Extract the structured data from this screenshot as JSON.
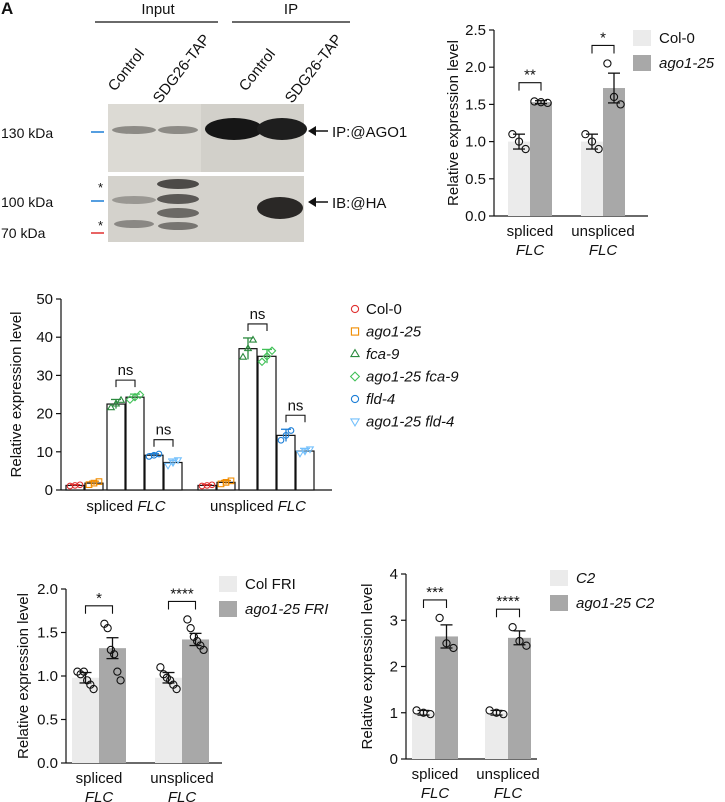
{
  "panel_letter": "A",
  "blot": {
    "group_input": "Input",
    "group_ip": "IP",
    "lanes": [
      "Control",
      "SDG26-TAP",
      "Control",
      "SDG26-TAP"
    ],
    "markers": [
      "130 kDa",
      "100 kDa",
      "70 kDa"
    ],
    "asterisk": "*",
    "label_ago1": "IP:@AGO1",
    "label_ha": "IB:@HA"
  },
  "colors": {
    "col0": "#ebebeb",
    "ago": "#a8a8a8",
    "c_col0": "#e03131",
    "c_ago": "#f08c00",
    "c_fca": "#2b8a3e",
    "c_agofca": "#40c057",
    "c_fld": "#1c7ed6",
    "c_agofld": "#74c0fc"
  },
  "chart_data": [
    {
      "id": "B",
      "type": "bar",
      "ylabel": "Relative expression level",
      "ylim": [
        0,
        2.5
      ],
      "yticks": [
        "0.0",
        "0.5",
        "1.0",
        "1.5",
        "2.0",
        "2.5"
      ],
      "categories": [
        "spliced",
        "unspliced"
      ],
      "categories_line2": [
        "FLC",
        "FLC"
      ],
      "series": [
        {
          "name": "Col-0",
          "values": [
            1.0,
            1.0
          ],
          "err": [
            0.1,
            0.1
          ],
          "points": [
            [
              1.1,
              1.0,
              0.9
            ],
            [
              1.1,
              1.0,
              0.9
            ]
          ]
        },
        {
          "name": "ago1-25",
          "values": [
            1.53,
            1.72
          ],
          "err": [
            0.02,
            0.2
          ],
          "points": [
            [
              1.54,
              1.53,
              1.52
            ],
            [
              2.05,
              1.6,
              1.5
            ]
          ]
        }
      ],
      "significance": [
        "**",
        "*"
      ]
    },
    {
      "id": "C",
      "type": "bar",
      "ylabel": "Relative expression level",
      "ylim": [
        0,
        50
      ],
      "yticks": [
        "0",
        "10",
        "20",
        "30",
        "40",
        "50"
      ],
      "categories": [
        "spliced FLC",
        "unspliced FLC"
      ],
      "series": [
        {
          "name": "Col-0",
          "values": [
            1.2,
            1.2
          ],
          "err": [
            0.2,
            0.2
          ]
        },
        {
          "name": "ago1-25",
          "values": [
            1.8,
            2.0
          ],
          "err": [
            0.5,
            0.5
          ]
        },
        {
          "name": "fca-9",
          "values": [
            22.5,
            37.0
          ],
          "err": [
            1.2,
            2.8
          ]
        },
        {
          "name": "ago1-25 fca-9",
          "values": [
            24.3,
            35.0
          ],
          "err": [
            0.8,
            1.8
          ]
        },
        {
          "name": "fld-4",
          "values": [
            9.1,
            14.3
          ],
          "err": [
            0.4,
            1.6
          ]
        },
        {
          "name": "ago1-25 fld-4",
          "values": [
            7.2,
            10.2
          ],
          "err": [
            0.9,
            0.7
          ]
        }
      ],
      "significance": [
        "ns",
        "ns",
        "ns",
        "ns"
      ]
    },
    {
      "id": "D",
      "type": "bar",
      "ylabel": "Relative expression level",
      "ylim": [
        0,
        2.0
      ],
      "yticks": [
        "0.0",
        "0.5",
        "1.0",
        "1.5",
        "2.0"
      ],
      "categories": [
        "spliced",
        "unspliced"
      ],
      "categories_line2": [
        "FLC",
        "FLC"
      ],
      "series": [
        {
          "name": "Col FRI",
          "values": [
            0.98,
            0.98
          ],
          "err": [
            0.06,
            0.06
          ],
          "points": [
            [
              1.05,
              1.02,
              1.05,
              0.95,
              0.9,
              0.85
            ],
            [
              1.1,
              1.02,
              0.98,
              0.95,
              0.9,
              0.85
            ]
          ]
        },
        {
          "name": "ago1-25 FRI",
          "values": [
            1.32,
            1.42
          ],
          "err": [
            0.12,
            0.07
          ],
          "points": [
            [
              1.6,
              1.55,
              1.3,
              1.25,
              1.05,
              0.95
            ],
            [
              1.65,
              1.55,
              1.45,
              1.4,
              1.35,
              1.3
            ]
          ]
        }
      ],
      "significance": [
        "*",
        "****"
      ]
    },
    {
      "id": "E",
      "type": "bar",
      "ylabel": "Relative expression level",
      "ylim": [
        0,
        4
      ],
      "yticks": [
        "0",
        "1",
        "2",
        "3",
        "4"
      ],
      "categories": [
        "spliced",
        "unspliced"
      ],
      "categories_line2": [
        "FLC",
        "FLC"
      ],
      "series": [
        {
          "name": "C2",
          "values": [
            1.0,
            1.0
          ],
          "err": [
            0.05,
            0.05
          ],
          "points": [
            [
              1.05,
              1.0,
              0.97
            ],
            [
              1.05,
              1.0,
              0.97
            ]
          ]
        },
        {
          "name": "ago1-25 C2",
          "values": [
            2.65,
            2.62
          ],
          "err": [
            0.25,
            0.15
          ],
          "points": [
            [
              3.05,
              2.5,
              2.4
            ],
            [
              2.85,
              2.55,
              2.45
            ]
          ]
        }
      ],
      "significance": [
        "***",
        "****"
      ]
    }
  ]
}
